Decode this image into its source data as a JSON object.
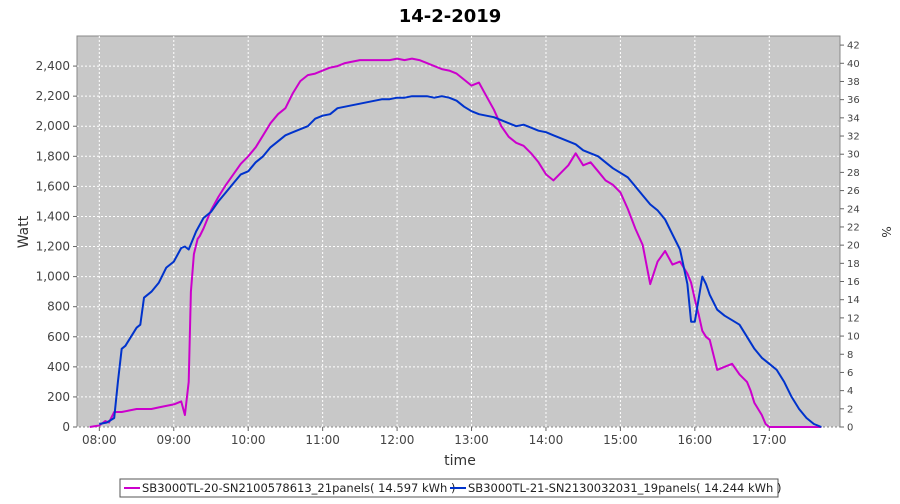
{
  "chart_data": {
    "type": "line",
    "title": "14-2-2019",
    "xlabel": "time",
    "ylabel": "Watt",
    "y2label": "%",
    "xlim": [
      7.7,
      17.95
    ],
    "ylim": [
      0,
      2600
    ],
    "y2lim": [
      0,
      43
    ],
    "x_ticks": [
      8,
      9,
      10,
      11,
      12,
      13,
      14,
      15,
      16,
      17
    ],
    "x_tick_labels": [
      "08:00",
      "09:00",
      "10:00",
      "11:00",
      "12:00",
      "13:00",
      "14:00",
      "15:00",
      "16:00",
      "17:00"
    ],
    "y_ticks": [
      0,
      200,
      400,
      600,
      800,
      1000,
      1200,
      1400,
      1600,
      1800,
      2000,
      2200,
      2400
    ],
    "y_tick_labels": [
      "0",
      "200",
      "400",
      "600",
      "800",
      "1,000",
      "1,200",
      "1,400",
      "1,600",
      "1,800",
      "2,000",
      "2,200",
      "2,400"
    ],
    "y2_ticks": [
      0,
      2,
      4,
      6,
      8,
      10,
      12,
      14,
      16,
      18,
      20,
      22,
      24,
      26,
      28,
      30,
      32,
      34,
      36,
      38,
      40,
      42
    ],
    "y2_tick_labels": [
      "0",
      "2",
      "4",
      "6",
      "8",
      "10",
      "12",
      "14",
      "16",
      "18",
      "20",
      "22",
      "24",
      "26",
      "28",
      "30",
      "32",
      "34",
      "36",
      "38",
      "40",
      "42"
    ],
    "grid": true,
    "legend_position": "bottom",
    "series": [
      {
        "name": "SB3000TL-20-SN2100578613_21panels( 14.597 kWh )",
        "color": "#cc00cc",
        "x": [
          7.87,
          8.0,
          8.08,
          8.13,
          8.2,
          8.3,
          8.4,
          8.5,
          8.6,
          8.7,
          8.8,
          8.9,
          9.0,
          9.1,
          9.15,
          9.2,
          9.23,
          9.27,
          9.32,
          9.35,
          9.4,
          9.5,
          9.6,
          9.7,
          9.8,
          9.9,
          10.0,
          10.1,
          10.2,
          10.3,
          10.4,
          10.5,
          10.6,
          10.7,
          10.8,
          10.9,
          11.0,
          11.1,
          11.2,
          11.3,
          11.4,
          11.5,
          11.6,
          11.7,
          11.8,
          11.9,
          12.0,
          12.1,
          12.2,
          12.3,
          12.4,
          12.5,
          12.6,
          12.7,
          12.8,
          12.9,
          13.0,
          13.1,
          13.2,
          13.3,
          13.4,
          13.5,
          13.6,
          13.7,
          13.8,
          13.9,
          14.0,
          14.1,
          14.2,
          14.3,
          14.4,
          14.5,
          14.6,
          14.7,
          14.8,
          14.9,
          15.0,
          15.1,
          15.2,
          15.3,
          15.4,
          15.5,
          15.6,
          15.7,
          15.8,
          15.9,
          15.95,
          16.0,
          16.05,
          16.1,
          16.15,
          16.2,
          16.3,
          16.4,
          16.5,
          16.6,
          16.7,
          16.75,
          16.8,
          16.9,
          16.95,
          17.0,
          17.1,
          17.2,
          17.3,
          17.4,
          17.5,
          17.6,
          17.7
        ],
        "values": [
          0,
          10,
          40,
          30,
          100,
          100,
          110,
          120,
          120,
          120,
          130,
          140,
          150,
          170,
          80,
          300,
          900,
          1150,
          1250,
          1270,
          1320,
          1440,
          1530,
          1610,
          1680,
          1750,
          1800,
          1860,
          1940,
          2020,
          2080,
          2120,
          2220,
          2300,
          2340,
          2350,
          2370,
          2390,
          2400,
          2420,
          2430,
          2440,
          2440,
          2440,
          2440,
          2440,
          2450,
          2440,
          2450,
          2440,
          2420,
          2400,
          2380,
          2370,
          2350,
          2310,
          2270,
          2290,
          2200,
          2110,
          2000,
          1930,
          1890,
          1870,
          1820,
          1760,
          1680,
          1640,
          1690,
          1740,
          1820,
          1740,
          1760,
          1700,
          1640,
          1610,
          1560,
          1450,
          1320,
          1210,
          950,
          1100,
          1170,
          1080,
          1100,
          1020,
          960,
          850,
          750,
          640,
          600,
          580,
          380,
          400,
          420,
          350,
          300,
          240,
          160,
          80,
          20,
          0,
          0,
          0,
          0,
          0,
          0,
          0,
          0
        ],
        "x_full": [
          7.87,
          8.0,
          8.08,
          8.13,
          8.2,
          8.3,
          8.4,
          8.5,
          8.6,
          8.7,
          8.8,
          8.9,
          9.0,
          9.1,
          9.15,
          9.2,
          9.23,
          9.27,
          9.32,
          9.35,
          9.4,
          9.5,
          9.6,
          9.7,
          9.8,
          9.9,
          10.0,
          10.1,
          10.2,
          10.3,
          10.4,
          10.5,
          10.6,
          10.7,
          10.8,
          10.9,
          11.0,
          11.1,
          11.2,
          11.3,
          11.4,
          11.5,
          11.6,
          11.7,
          11.8,
          11.9,
          12.0,
          12.1,
          12.2,
          12.3,
          12.4,
          12.5,
          12.6,
          12.7,
          12.8,
          12.9,
          13.0,
          13.1,
          13.2,
          13.3,
          13.4,
          13.5,
          13.6,
          13.7,
          13.8,
          13.9,
          14.0,
          14.1,
          14.2,
          14.3,
          14.4,
          14.5,
          14.6,
          14.7,
          14.8,
          14.9,
          15.0,
          15.1,
          15.2,
          15.3,
          15.4,
          15.5,
          15.6,
          15.7,
          15.8,
          15.9,
          15.95,
          16.0,
          16.05,
          16.1,
          16.15,
          16.2,
          16.3,
          16.4,
          16.5,
          16.6,
          16.7,
          16.75,
          16.8,
          16.9,
          16.95,
          17.0,
          17.1,
          17.2,
          17.3,
          17.4,
          17.5,
          17.6,
          17.7
        ]
      },
      {
        "name": "SB3000TL-21-SN2130032031_19panels( 14.244 kWh )",
        "color": "#0033cc",
        "x": [
          8.0,
          8.1,
          8.2,
          8.25,
          8.3,
          8.35,
          8.4,
          8.5,
          8.55,
          8.6,
          8.7,
          8.8,
          8.9,
          9.0,
          9.1,
          9.15,
          9.2,
          9.3,
          9.4,
          9.5,
          9.6,
          9.7,
          9.8,
          9.9,
          10.0,
          10.1,
          10.2,
          10.3,
          10.4,
          10.5,
          10.6,
          10.7,
          10.8,
          10.9,
          11.0,
          11.1,
          11.2,
          11.3,
          11.4,
          11.5,
          11.6,
          11.7,
          11.8,
          11.9,
          12.0,
          12.1,
          12.2,
          12.3,
          12.4,
          12.5,
          12.6,
          12.7,
          12.8,
          12.9,
          13.0,
          13.1,
          13.2,
          13.3,
          13.4,
          13.5,
          13.6,
          13.7,
          13.8,
          13.9,
          14.0,
          14.1,
          14.2,
          14.3,
          14.4,
          14.5,
          14.6,
          14.7,
          14.8,
          14.9,
          15.0,
          15.1,
          15.2,
          15.3,
          15.4,
          15.5,
          15.6,
          15.7,
          15.8,
          15.9,
          15.95,
          16.0,
          16.05,
          16.1,
          16.15,
          16.2,
          16.3,
          16.4,
          16.5,
          16.6,
          16.7,
          16.8,
          16.9,
          17.0,
          17.1,
          17.2,
          17.3,
          17.4,
          17.5,
          17.6,
          17.7
        ],
        "values": [
          20,
          30,
          60,
          300,
          520,
          540,
          580,
          660,
          680,
          860,
          900,
          960,
          1060,
          1100,
          1190,
          1200,
          1180,
          1300,
          1390,
          1430,
          1500,
          1560,
          1620,
          1680,
          1700,
          1760,
          1800,
          1860,
          1900,
          1940,
          1960,
          1980,
          2000,
          2050,
          2070,
          2080,
          2120,
          2130,
          2140,
          2150,
          2160,
          2170,
          2180,
          2180,
          2190,
          2190,
          2200,
          2200,
          2200,
          2190,
          2200,
          2190,
          2170,
          2130,
          2100,
          2080,
          2070,
          2060,
          2040,
          2020,
          2000,
          2010,
          1990,
          1970,
          1960,
          1940,
          1920,
          1900,
          1880,
          1840,
          1820,
          1800,
          1760,
          1720,
          1690,
          1660,
          1600,
          1540,
          1480,
          1440,
          1380,
          1280,
          1180,
          950,
          700,
          700,
          850,
          1000,
          950,
          880,
          780,
          740,
          710,
          680,
          600,
          520,
          460,
          420,
          380,
          300,
          200,
          120,
          60,
          20,
          0
        ]
      }
    ]
  }
}
